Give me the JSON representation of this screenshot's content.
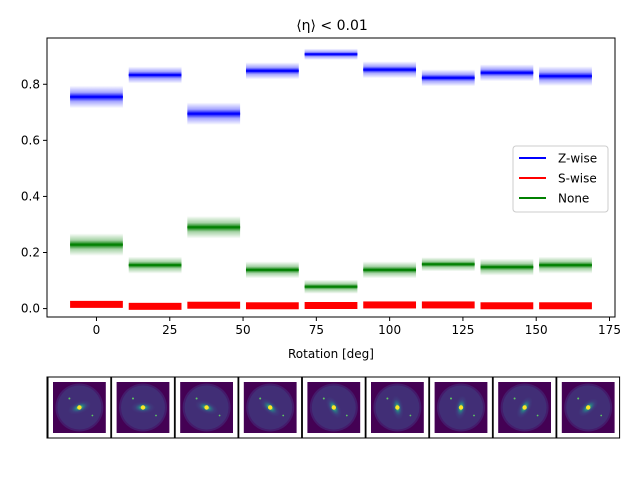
{
  "chart_data": {
    "type": "band",
    "title": "⟨η⟩ < 0.01",
    "xlabel": "Rotation [deg]",
    "ylabel": "",
    "xlim": [
      -16.875,
      176.875
    ],
    "ylim": [
      -0.03,
      0.965
    ],
    "x_ticks": [
      0,
      25,
      50,
      75,
      100,
      125,
      150,
      175
    ],
    "y_ticks": [
      0.0,
      0.2,
      0.4,
      0.6,
      0.8
    ],
    "x_tick_labels": [
      "0",
      "25",
      "50",
      "75",
      "100",
      "125",
      "150",
      "175"
    ],
    "y_tick_labels": [
      "0.0",
      "0.2",
      "0.4",
      "0.6",
      "0.8"
    ],
    "rotations": [
      0,
      20,
      40,
      60,
      80,
      100,
      120,
      140,
      160
    ],
    "bar_half_width": 9,
    "series": [
      {
        "name": "Z-wise",
        "color": "#0000ff",
        "values": [
          0.755,
          0.833,
          0.695,
          0.848,
          0.907,
          0.852,
          0.823,
          0.841,
          0.829
        ],
        "spread": [
          0.04,
          0.03,
          0.04,
          0.03,
          0.02,
          0.03,
          0.03,
          0.03,
          0.035
        ]
      },
      {
        "name": "S-wise",
        "color": "#ff0000",
        "values": [
          0.015,
          0.008,
          0.012,
          0.01,
          0.011,
          0.013,
          0.013,
          0.01,
          0.01
        ],
        "spread": [
          0.008,
          0.008,
          0.008,
          0.008,
          0.008,
          0.008,
          0.008,
          0.008,
          0.008
        ]
      },
      {
        "name": "None",
        "color": "#008000",
        "values": [
          0.228,
          0.155,
          0.29,
          0.138,
          0.078,
          0.138,
          0.158,
          0.148,
          0.155
        ],
        "spread": [
          0.04,
          0.03,
          0.04,
          0.03,
          0.025,
          0.03,
          0.025,
          0.03,
          0.03
        ]
      }
    ],
    "legend": {
      "position": "right",
      "entries": [
        "Z-wise",
        "S-wise",
        "None"
      ]
    },
    "thumbnails": {
      "count": 9,
      "subject": "galaxy"
    }
  }
}
